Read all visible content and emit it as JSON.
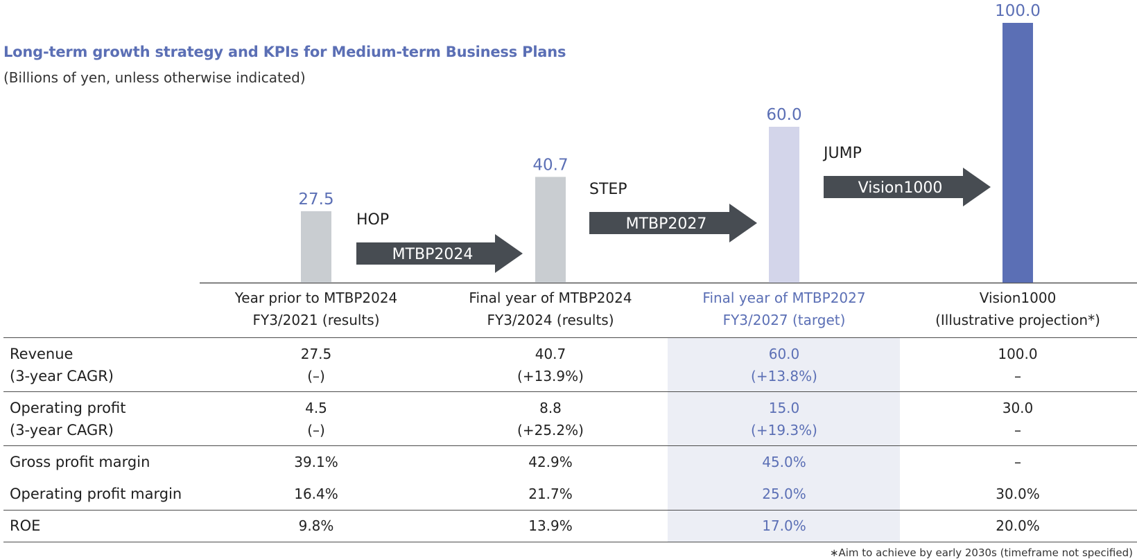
{
  "title": "Long-term growth strategy and KPIs for Medium-term Business Plans",
  "subtitle": "(Billions of yen, unless otherwise indicated)",
  "colors": {
    "accent": "#5b6fb5",
    "bar_results": "#c9cdd1",
    "bar_target": "#d3d5ea",
    "bar_vision": "#5b6fb5",
    "arrow": "#474c52"
  },
  "chart_data": {
    "type": "bar",
    "categories": [
      "Year prior to MTBP2024 FY3/2021 (results)",
      "Final year of MTBP2024 FY3/2024 (results)",
      "Final year of MTBP2027 FY3/2027 (target)",
      "Vision1000 (Illustrative projection*)"
    ],
    "values": [
      27.5,
      40.7,
      60.0,
      100.0
    ],
    "value_labels": [
      "27.5",
      "40.7",
      "60.0",
      "100.0"
    ],
    "ylim": [
      0,
      100
    ],
    "grid": false,
    "arrows": [
      {
        "step": "HOP",
        "plan": "MTBP2024"
      },
      {
        "step": "STEP",
        "plan": "MTBP2027"
      },
      {
        "step": "JUMP",
        "plan": "Vision1000"
      }
    ]
  },
  "columns": [
    {
      "line1": "Year prior to MTBP2024",
      "line2": "FY3/2021 (results)"
    },
    {
      "line1": "Final year of MTBP2024",
      "line2": "FY3/2024 (results)"
    },
    {
      "line1": "Final year of MTBP2027",
      "line2": "FY3/2027 (target)"
    },
    {
      "line1": "Vision1000",
      "line2": "(Illustrative projection*)"
    }
  ],
  "rows": [
    {
      "label": "Revenue",
      "sublabel": "(3-year CAGR)",
      "cells": [
        {
          "v": "27.5",
          "s": "(–)"
        },
        {
          "v": "40.7",
          "s": "(+13.9%)"
        },
        {
          "v": "60.0",
          "s": "(+13.8%)"
        },
        {
          "v": "100.0",
          "s": "–"
        }
      ]
    },
    {
      "label": "Operating profit",
      "sublabel": "(3-year CAGR)",
      "cells": [
        {
          "v": "4.5",
          "s": "(–)"
        },
        {
          "v": "8.8",
          "s": "(+25.2%)"
        },
        {
          "v": "15.0",
          "s": "(+19.3%)"
        },
        {
          "v": "30.0",
          "s": "–"
        }
      ]
    },
    {
      "label": "Gross profit margin",
      "cells": [
        {
          "v": "39.1%"
        },
        {
          "v": "42.9%"
        },
        {
          "v": "45.0%"
        },
        {
          "v": "–"
        }
      ]
    },
    {
      "label": "Operating profit margin",
      "cells": [
        {
          "v": "16.4%"
        },
        {
          "v": "21.7%"
        },
        {
          "v": "25.0%"
        },
        {
          "v": "30.0%"
        }
      ]
    },
    {
      "label": "ROE",
      "cells": [
        {
          "v": "9.8%"
        },
        {
          "v": "13.9%"
        },
        {
          "v": "17.0%"
        },
        {
          "v": "20.0%"
        }
      ]
    }
  ],
  "footnote": "∗Aim to achieve by early 2030s (timeframe not specified)"
}
